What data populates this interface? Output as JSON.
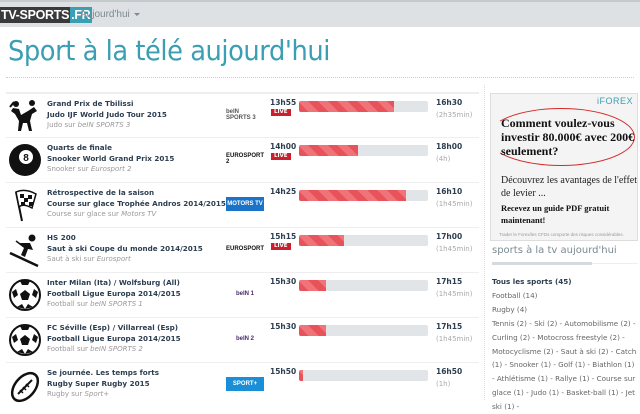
{
  "navbar": {
    "brand_part1": "TV-SPORTS",
    "brand_part2": ".FR",
    "menu_label": "Aujourd'hui"
  },
  "page": {
    "title": "Sport à la télé aujourd'hui"
  },
  "colors": {
    "accent": "#3a9fb3",
    "live": "#cc1f2d",
    "progress": "#e8535b",
    "progress_track": "#e2e5e7"
  },
  "programs": [
    {
      "icon": "judo-icon",
      "title": "Grand Prix de Tbilissi",
      "competition": "Judo IJF World Judo Tour 2015",
      "sport": "Judo",
      "sur": "sur",
      "channel": "beIN SPORTS 3",
      "start": "13h55",
      "live": "LIVE",
      "end": "16h30",
      "duration": "(2h35min)",
      "progress": 74
    },
    {
      "icon": "billiard-ball-icon",
      "title": "Quarts de finale",
      "competition": "Snooker World Grand Prix 2015",
      "sport": "Snooker",
      "sur": "sur",
      "channel": "Eurosport 2",
      "start": "14h00",
      "live": "LIVE",
      "end": "18h00",
      "duration": "(4h)",
      "progress": 46
    },
    {
      "icon": "checkered-flag-icon",
      "title": "Rétrospective de la saison",
      "competition": "Course sur glace Trophée Andros 2014/2015",
      "sport": "Course sur glace",
      "sur": "sur",
      "channel": "Motors TV",
      "start": "14h25",
      "live": "",
      "end": "16h10",
      "duration": "(1h45min)",
      "progress": 83
    },
    {
      "icon": "ski-jump-icon",
      "title": "HS 200",
      "competition": "Saut à ski Coupe du monde 2014/2015",
      "sport": "Saut à ski",
      "sur": "sur",
      "channel": "Eurosport",
      "start": "15h15",
      "live": "LIVE",
      "end": "17h00",
      "duration": "(1h45min)",
      "progress": 35
    },
    {
      "icon": "soccer-ball-icon",
      "title": "Inter Milan (Ita) / Wolfsburg (All)",
      "competition": "Football Ligue Europa 2014/2015",
      "sport": "Football",
      "sur": "sur",
      "channel": "beIN SPORTS 1",
      "start": "15h30",
      "live": "",
      "end": "17h15",
      "duration": "(1h45min)",
      "progress": 21
    },
    {
      "icon": "soccer-ball-icon",
      "title": "FC Séville (Esp) / Villarreal (Esp)",
      "competition": "Football Ligue Europa 2014/2015",
      "sport": "Football",
      "sur": "sur",
      "channel": "beIN SPORTS 2",
      "start": "15h30",
      "live": "",
      "end": "17h15",
      "duration": "(1h45min)",
      "progress": 21
    },
    {
      "icon": "rugby-ball-icon",
      "title": "Se journée. Les temps forts",
      "competition": "Rugby Super Rugby 2015",
      "sport": "Rugby",
      "sur": "sur",
      "channel": "Sport+",
      "start": "15h50",
      "live": "",
      "end": "16h50",
      "duration": "(1h)",
      "progress": 3
    }
  ],
  "channel_logos": [
    "beIN SPORTS 3",
    "EUROSPORT 2",
    "MOTORS TV",
    "EUROSPORT",
    "beIN 1",
    "beIN 2",
    "SPORT+"
  ],
  "ad": {
    "brand": "iFOREX",
    "headline": "Comment voulez-vous investir 80.000€ avec 200€ seulement?",
    "sub": "Découvrez les avantages de l'effet de levier ...",
    "cta": "Recevez un guide PDF gratuit maintenant!",
    "disclaimer": "Trader le Forex/les CFDs comporte des risques considérables."
  },
  "sidebar": {
    "title": "sports à la tv aujourd'hui",
    "all_sports": "Tous les sports (45)",
    "line1": "Football (14)",
    "line2": "Rugby (4)",
    "rest": "Tennis (2) - Ski (2) - Automobilisme (2) - Curling (2) - Motocross freestyle (2) - Motocyclisme (2) - Saut à ski (2) - Catch (1) - Snooker (1) - Golf (1) - Biathlon (1) - Athlétisme (1) - Rallye (1) - Course sur glace (1) - Judo (1) - Basket-ball (1) - Jet ski (1) -"
  }
}
